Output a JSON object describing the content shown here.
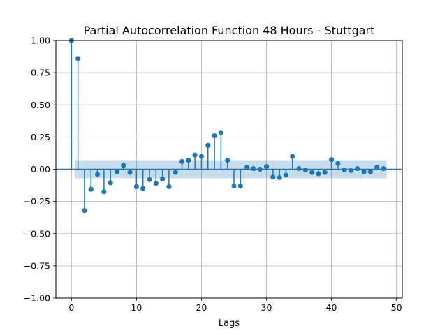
{
  "chart_data": {
    "type": "stem",
    "title": "Partial Autocorrelation Function 48 Hours - Stuttgart",
    "xlabel": "Lags",
    "ylabel": "",
    "xlim": [
      -2.4,
      50.9
    ],
    "ylim": [
      -1.0,
      1.0
    ],
    "xticks": [
      0,
      10,
      20,
      30,
      40,
      50
    ],
    "yticks": [
      -1.0,
      -0.75,
      -0.5,
      -0.25,
      0.0,
      0.25,
      0.5,
      0.75,
      1.0
    ],
    "xtick_labels": [
      "0",
      "10",
      "20",
      "30",
      "40",
      "50"
    ],
    "ytick_labels": [
      "−1.00",
      "−0.75",
      "−0.50",
      "−0.25",
      "0.00",
      "0.25",
      "0.50",
      "0.75",
      "1.00"
    ],
    "grid": true,
    "confidence_band": {
      "x_range": [
        0.5,
        48.5
      ],
      "lower": -0.07,
      "upper": 0.07
    },
    "series": [
      {
        "x": [
          0,
          1,
          2,
          3,
          4,
          5,
          6,
          7,
          8,
          9,
          10,
          11,
          12,
          13,
          14,
          15,
          16,
          17,
          18,
          19,
          20,
          21,
          22,
          23,
          24,
          25,
          26,
          27,
          28,
          29,
          30,
          31,
          32,
          33,
          34,
          35,
          36,
          37,
          38,
          39,
          40,
          41,
          42,
          43,
          44,
          45,
          46,
          47,
          48
        ],
        "values": [
          1.0,
          0.86,
          -0.32,
          -0.155,
          -0.04,
          -0.175,
          -0.105,
          -0.02,
          0.03,
          -0.025,
          -0.135,
          -0.15,
          -0.08,
          -0.11,
          -0.075,
          -0.135,
          -0.025,
          0.06,
          0.07,
          0.11,
          0.1,
          0.185,
          0.26,
          0.285,
          0.07,
          -0.13,
          -0.13,
          0.015,
          0.005,
          0.0,
          0.02,
          -0.06,
          -0.065,
          -0.045,
          0.1,
          0.005,
          -0.005,
          -0.025,
          -0.035,
          -0.025,
          0.075,
          0.045,
          -0.005,
          -0.01,
          0.005,
          -0.02,
          -0.02,
          0.015,
          0.005
        ]
      }
    ]
  },
  "colors": {
    "series": "#1f77b4",
    "band": "#1f77b4",
    "grid": "#b0b0b0",
    "axis": "#000000"
  }
}
